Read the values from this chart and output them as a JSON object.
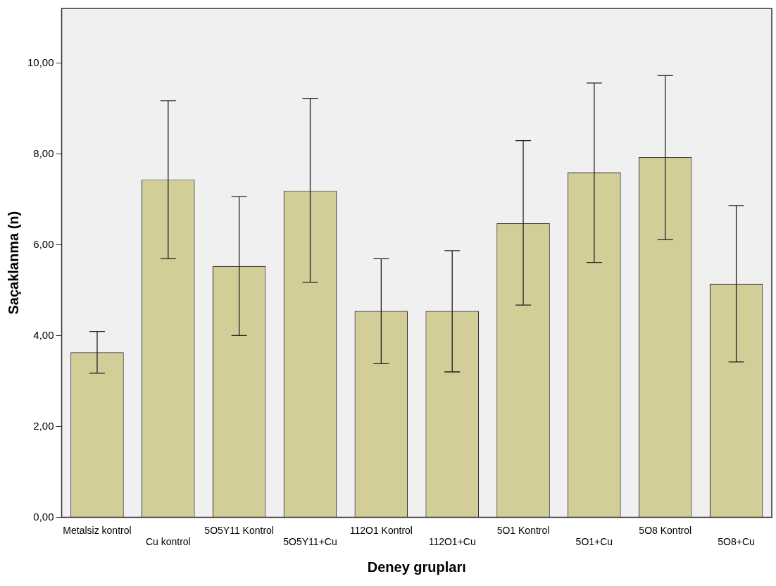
{
  "chart_data": {
    "type": "bar",
    "xlabel": "Deney grupları",
    "ylabel": "Saçaklanma (n)",
    "categories": [
      "Metalsiz kontrol",
      "Cu kontrol",
      "5O5Y11 Kontrol",
      "5O5Y11+Cu",
      "112O1 Kontrol",
      "112O1+Cu",
      "5O1 Kontrol",
      "5O1+Cu",
      "5O8 Kontrol",
      "5O8+Cu"
    ],
    "values": [
      3.63,
      7.43,
      5.53,
      7.19,
      4.54,
      4.54,
      6.47,
      7.59,
      7.93,
      5.14
    ],
    "errors": [
      [
        3.17,
        4.09
      ],
      [
        5.69,
        9.17
      ],
      [
        4.0,
        7.06
      ],
      [
        5.17,
        9.22
      ],
      [
        3.38,
        5.69
      ],
      [
        3.2,
        5.87
      ],
      [
        4.67,
        8.29
      ],
      [
        5.61,
        9.56
      ],
      [
        6.11,
        9.72
      ],
      [
        3.42,
        6.86
      ]
    ],
    "color": "#d3cd97",
    "ylim": [
      0,
      11.2
    ],
    "yticks": [
      {
        "value": 0,
        "label": "0,00"
      },
      {
        "value": 2,
        "label": "2,00"
      },
      {
        "value": 4,
        "label": "4,00"
      },
      {
        "value": 6,
        "label": "6,00"
      },
      {
        "value": 8,
        "label": "8,00"
      },
      {
        "value": 10,
        "label": "10,00"
      }
    ],
    "grid": false,
    "legend": false
  }
}
